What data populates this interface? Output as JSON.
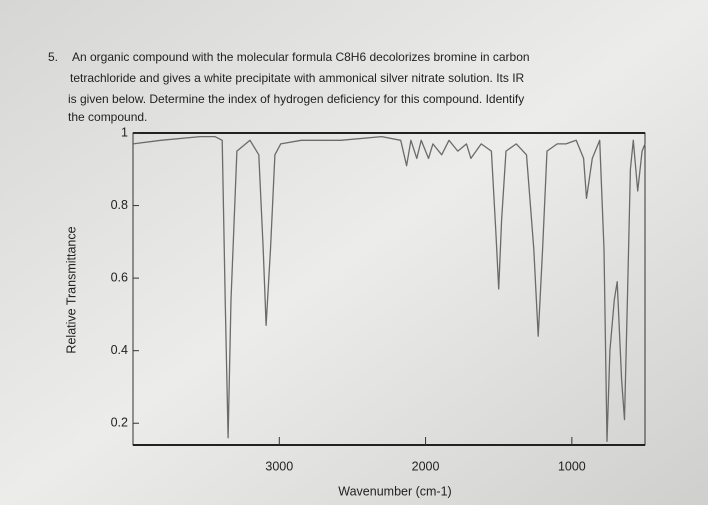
{
  "question": {
    "number": "5.",
    "lines": [
      "An organic compound with the molecular formula C8H6 decolorizes bromine in carbon",
      "tetrachloride and gives a white precipitate with ammonical silver nitrate solution. Its IR",
      "is given below. Determine the index of hydrogen deficiency for this compound. Identify",
      "the compound."
    ]
  },
  "chart_data": {
    "type": "line",
    "x_label": "Wavenumber (cm-1)",
    "y_label": "Relative Transmittance",
    "color": "#6b6b6b",
    "xlim": [
      4000,
      500
    ],
    "xticks": [
      3000,
      2000,
      1000
    ],
    "ylim": [
      0.14,
      1
    ],
    "yticks": [
      0.2,
      0.4,
      0.6,
      0.8,
      1
    ],
    "x": [
      4000,
      3810,
      3540,
      3440,
      3390,
      3370,
      3350,
      3330,
      3290,
      3200,
      3140,
      3110,
      3090,
      3060,
      3030,
      2990,
      2850,
      2580,
      2300,
      2170,
      2130,
      2100,
      2060,
      2030,
      1980,
      1950,
      1890,
      1840,
      1780,
      1720,
      1690,
      1620,
      1550,
      1520,
      1500,
      1480,
      1450,
      1380,
      1310,
      1260,
      1230,
      1200,
      1170,
      1100,
      1040,
      970,
      920,
      900,
      860,
      810,
      780,
      760,
      740,
      710,
      690,
      660,
      640,
      620,
      600,
      580,
      550,
      520,
      500
    ],
    "values": [
      0.97,
      0.98,
      0.99,
      0.99,
      0.98,
      0.54,
      0.16,
      0.54,
      0.95,
      0.98,
      0.94,
      0.68,
      0.47,
      0.68,
      0.94,
      0.97,
      0.98,
      0.98,
      0.99,
      0.98,
      0.91,
      0.98,
      0.93,
      0.98,
      0.93,
      0.97,
      0.94,
      0.98,
      0.95,
      0.97,
      0.93,
      0.97,
      0.95,
      0.73,
      0.57,
      0.76,
      0.95,
      0.97,
      0.94,
      0.68,
      0.44,
      0.68,
      0.95,
      0.97,
      0.97,
      0.98,
      0.93,
      0.82,
      0.93,
      0.98,
      0.68,
      0.15,
      0.4,
      0.54,
      0.59,
      0.32,
      0.21,
      0.54,
      0.9,
      0.98,
      0.84,
      0.95,
      0.97
    ]
  }
}
